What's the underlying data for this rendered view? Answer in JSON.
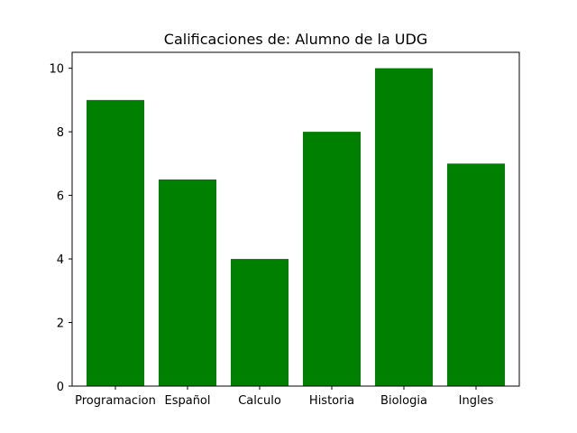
{
  "chart_data": {
    "type": "bar",
    "title": "Calificaciones de: Alumno de la UDG",
    "xlabel": "",
    "ylabel": "",
    "categories": [
      "Programacion",
      "Español",
      "Calculo",
      "Historia",
      "Biologia",
      "Ingles"
    ],
    "values": [
      9,
      6.5,
      4,
      8,
      10,
      7
    ],
    "ylim": [
      0,
      10.5
    ],
    "yticks": [
      0,
      2,
      4,
      6,
      8,
      10
    ],
    "grid": false,
    "bar_color": "#008000"
  }
}
